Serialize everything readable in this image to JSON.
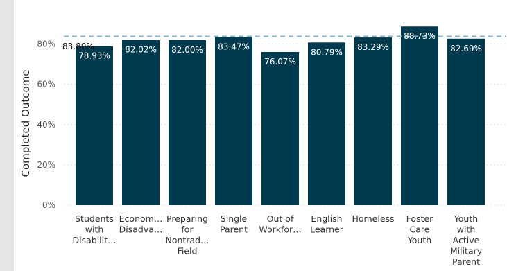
{
  "chart_data": {
    "type": "bar",
    "title": "",
    "xlabel": "",
    "ylabel": "Completed Outcome",
    "ylim": [
      0,
      90
    ],
    "yticks": [
      "0%",
      "20%",
      "40%",
      "60%",
      "80%"
    ],
    "ytick_values": [
      0,
      20,
      40,
      60,
      80
    ],
    "grid": true,
    "categories": [
      [
        "Students",
        "with",
        "Disabilit…"
      ],
      [
        "Econom…",
        "Disadva…"
      ],
      [
        "Preparing",
        "for",
        "Nontrad…",
        "Field"
      ],
      [
        "Single",
        "Parent"
      ],
      [
        "Out of",
        "Workfor…"
      ],
      [
        "English",
        "Learner"
      ],
      [
        "Homeless"
      ],
      [
        "Foster",
        "Care",
        "Youth"
      ],
      [
        "Youth",
        "with",
        "Active",
        "Military",
        "Parent"
      ]
    ],
    "values": [
      78.93,
      82.02,
      82.0,
      83.47,
      76.07,
      80.79,
      83.29,
      88.73,
      82.69
    ],
    "data_labels": [
      "78.93%",
      "82.02%",
      "82.00%",
      "83.47%",
      "76.07%",
      "80.79%",
      "83.29%",
      "88.73%",
      "82.69%"
    ],
    "reference_line": {
      "value": 83.8,
      "label": "83.80%"
    },
    "colors": {
      "bar": "#003a4f",
      "reference_line": "#7fb6c9",
      "grid": "#dcdcdc",
      "background": "#ffffff"
    }
  }
}
